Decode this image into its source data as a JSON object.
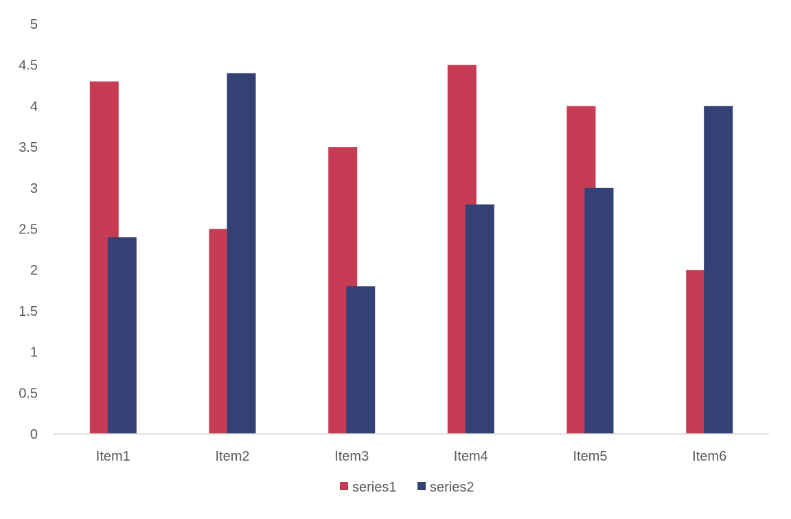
{
  "chart_data": {
    "type": "bar",
    "categories": [
      "Item1",
      "Item2",
      "Item3",
      "Item4",
      "Item5",
      "Item6"
    ],
    "series": [
      {
        "name": "series1",
        "color": "#c63c55",
        "values": [
          4.3,
          2.5,
          3.5,
          4.5,
          4.0,
          2.0
        ]
      },
      {
        "name": "series2",
        "color": "#334175",
        "values": [
          2.4,
          4.4,
          1.8,
          2.8,
          3.0,
          4.0
        ]
      }
    ],
    "ylim": [
      0,
      5
    ],
    "yticks": [
      "0",
      "0.5",
      "1",
      "1.5",
      "2",
      "2.5",
      "3",
      "3.5",
      "4",
      "4.5",
      "5"
    ],
    "grid": false,
    "legend_position": "bottom",
    "title": "",
    "xlabel": "",
    "ylabel": ""
  }
}
